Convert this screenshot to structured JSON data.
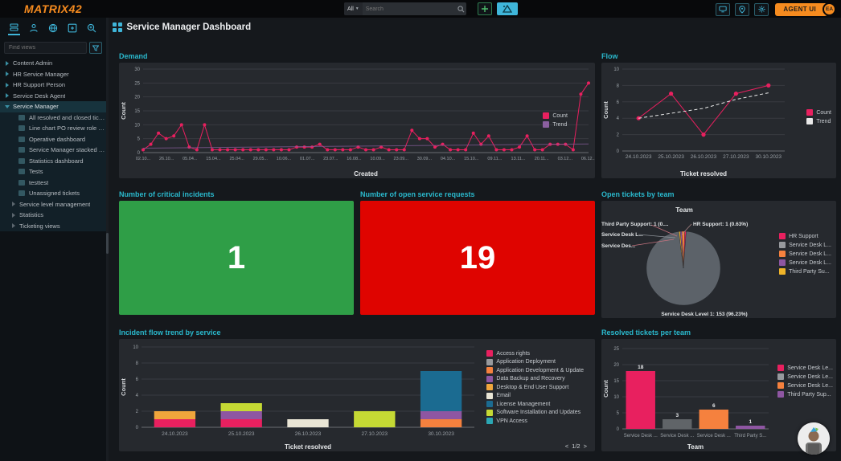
{
  "topbar": {
    "logo": "MATRIX42",
    "search": {
      "scope": "All",
      "placeholder": "Search"
    },
    "add_label": "+",
    "agent_ui_label": "AGENT UI",
    "avatar_initials": "EA"
  },
  "sidebar": {
    "find_views_placeholder": "Find views",
    "tree": [
      {
        "label": "Content Admin",
        "type": "group"
      },
      {
        "label": "HR Service Manager",
        "type": "group"
      },
      {
        "label": "HR Support Person",
        "type": "group"
      },
      {
        "label": "Service Desk Agent",
        "type": "group"
      },
      {
        "label": "Service Manager",
        "type": "group-expanded",
        "children": [
          {
            "label": "All resolved and closed tickets",
            "type": "leaf"
          },
          {
            "label": "Line chart PO review role chart",
            "type": "leaf"
          },
          {
            "label": "Operative dashboard",
            "type": "leaf"
          },
          {
            "label": "Service Manager stacked bar ch...",
            "type": "leaf"
          },
          {
            "label": "Statistics dashboard",
            "type": "leaf"
          },
          {
            "label": "Tests",
            "type": "leaf"
          },
          {
            "label": "testtest",
            "type": "leaf"
          },
          {
            "label": "Unassigned tickets",
            "type": "leaf"
          },
          {
            "label": "Service level management",
            "type": "subgroup"
          },
          {
            "label": "Statistics",
            "type": "subgroup"
          },
          {
            "label": "Ticketing views",
            "type": "subgroup"
          }
        ]
      }
    ]
  },
  "header": {
    "title": "Service Manager Dashboard"
  },
  "cards": {
    "demand_title": "Demand",
    "flow_title": "Flow",
    "critical_title": "Number of critical incidents",
    "critical_value": "1",
    "critical_color": "#2f9e47",
    "requests_title": "Number of open service requests",
    "requests_value": "19",
    "requests_color": "#df0400",
    "pie_title": "Open tickets by team",
    "incident_title": "Incident flow trend by service",
    "resolved_title": "Resolved tickets per team",
    "incident_pagination": {
      "prev": "<",
      "label": "1/2",
      "next": ">"
    }
  },
  "chart_data": [
    {
      "id": "demand",
      "type": "line",
      "title": "Demand",
      "xlabel": "Created",
      "ylabel": "Count",
      "ylim": [
        0,
        30
      ],
      "yticks": [
        0,
        5,
        10,
        15,
        20,
        25,
        30
      ],
      "x_tick_labels": [
        "02.10...",
        "26.10...",
        "05.04...",
        "15.04...",
        "25.04...",
        "29.05...",
        "10.06...",
        "01.07...",
        "23.07...",
        "16.08...",
        "10.09...",
        "23.09...",
        "30.09...",
        "04.10...",
        "15.10...",
        "09.11...",
        "13.11...",
        "20.11...",
        "03.12...",
        "06.12..."
      ],
      "series": [
        {
          "name": "Count",
          "color": "#e8205f",
          "dots": true,
          "values": [
            1,
            3,
            7,
            5,
            6,
            10,
            2,
            1,
            10,
            1,
            1,
            1,
            1,
            1,
            1,
            1,
            1,
            1,
            1,
            1,
            2,
            2,
            2,
            3,
            1,
            1,
            1,
            1,
            2,
            1,
            1,
            2,
            1,
            1,
            1,
            8,
            5,
            5,
            2,
            3,
            1,
            1,
            1,
            7,
            3,
            6,
            1,
            1,
            1,
            2,
            6,
            1,
            1,
            3,
            3,
            3,
            1,
            21,
            25
          ]
        },
        {
          "name": "Trend",
          "color": "#8b5fa0",
          "dots": false,
          "values": [
            1.6,
            3.1
          ]
        }
      ],
      "legend": [
        {
          "label": "Count",
          "color": "#e8205f"
        },
        {
          "label": "Trend",
          "color": "#8b5fa0"
        }
      ]
    },
    {
      "id": "flow",
      "type": "line",
      "title": "Flow",
      "xlabel": "Ticket resolved",
      "ylabel": "Count",
      "ylim": [
        0,
        10
      ],
      "yticks": [
        0,
        2,
        4,
        6,
        8,
        10
      ],
      "categories": [
        "24.10.2023",
        "25.10.2023",
        "26.10.2023",
        "27.10.2023",
        "30.10.2023"
      ],
      "series": [
        {
          "name": "Count",
          "color": "#e8205f",
          "dots": true,
          "values": [
            4,
            7,
            2,
            7,
            8
          ]
        },
        {
          "name": "Trend",
          "color": "#e9e9e9",
          "dots": false,
          "dashed": true,
          "values": [
            4,
            4.6,
            5.2,
            6.3,
            7.1
          ]
        }
      ],
      "legend": [
        {
          "label": "Count",
          "color": "#e8205f"
        },
        {
          "label": "Trend",
          "color": "#e9e9e9"
        }
      ]
    },
    {
      "id": "open-tickets-by-team",
      "type": "pie",
      "title": "Team",
      "slices": [
        {
          "label": "HR Support",
          "value": 1,
          "color": "#e8205f",
          "callout": "HR Support: 1 (0.63%)"
        },
        {
          "label": "Service Desk Level 1",
          "value": 153,
          "color": "#5c6269",
          "callout": "Service Desk Level 1: 153 (96.23%)"
        },
        {
          "label": "Third Party Support",
          "value": 1,
          "color": "#f0b429",
          "callout": "Third Party Support: 1 (0...."
        },
        {
          "label": "Service Desk Level 3",
          "value": 1,
          "color": "#8e56a2",
          "callout": "Service Desk L..."
        },
        {
          "label": "Service Desk Level 2",
          "value": 2,
          "color": "#f5813e",
          "callout": "Service Des..."
        }
      ],
      "legend": [
        {
          "label": "HR Support",
          "color": "#e8205f"
        },
        {
          "label": "Service Desk L...",
          "color": "#97999d"
        },
        {
          "label": "Service Desk L...",
          "color": "#f5813e"
        },
        {
          "label": "Service Desk L...",
          "color": "#8e56a2"
        },
        {
          "label": "Third Party Su...",
          "color": "#f0b429"
        }
      ]
    },
    {
      "id": "incident-flow-trend",
      "type": "stacked-bar",
      "xlabel": "Ticket resolved",
      "ylabel": "Count",
      "ylim": [
        0,
        10
      ],
      "yticks": [
        0,
        2,
        4,
        6,
        8,
        10
      ],
      "categories": [
        "24.10.2023",
        "25.10.2023",
        "26.10.2023",
        "27.10.2023",
        "30.10.2023"
      ],
      "stacks": [
        [
          {
            "service": "Access rights",
            "value": 1
          },
          {
            "service": "Desktop & End User Support",
            "value": 1
          }
        ],
        [
          {
            "service": "Access rights",
            "value": 1
          },
          {
            "service": "Data Backup and Recovery",
            "value": 1
          },
          {
            "service": "Software Installation and Updates",
            "value": 1
          }
        ],
        [
          {
            "service": "Email",
            "value": 1
          }
        ],
        [
          {
            "service": "Software Installation and Updates",
            "value": 2
          }
        ],
        [
          {
            "service": "Application Development & Update",
            "value": 1
          },
          {
            "service": "Data Backup and Recovery",
            "value": 1
          },
          {
            "service": "License Management",
            "value": 5
          }
        ]
      ],
      "legend": [
        {
          "label": "Access rights",
          "color": "#e8205f"
        },
        {
          "label": "Application Deployment",
          "color": "#97999d"
        },
        {
          "label": "Application Development & Update",
          "color": "#f5813e"
        },
        {
          "label": "Data Backup and Recovery",
          "color": "#8e56a2"
        },
        {
          "label": "Desktop & End User Support",
          "color": "#f0a63c"
        },
        {
          "label": "Email",
          "color": "#e9e5d5"
        },
        {
          "label": "License Management",
          "color": "#1b6b91"
        },
        {
          "label": "Software Installation and Updates",
          "color": "#c5d934"
        },
        {
          "label": "VPN Access",
          "color": "#2ba7b4"
        }
      ]
    },
    {
      "id": "resolved-per-team",
      "type": "bar",
      "xlabel": "Team",
      "ylabel": "Count",
      "ylim": [
        0,
        25
      ],
      "yticks": [
        0,
        5,
        10,
        15,
        20,
        25
      ],
      "categories": [
        "Service Desk ...",
        "Service Desk ...",
        "Service Desk ...",
        "Third Party S..."
      ],
      "values": [
        18,
        3,
        6,
        1
      ],
      "bar_colors": [
        "#e8205f",
        "#606468",
        "#f5813e",
        "#8e56a2"
      ],
      "legend": [
        {
          "label": "Service Desk Le...",
          "color": "#e8205f"
        },
        {
          "label": "Service Desk Le...",
          "color": "#97999d"
        },
        {
          "label": "Service Desk Le...",
          "color": "#f5813e"
        },
        {
          "label": "Third Party Sup...",
          "color": "#8e56a2"
        }
      ]
    }
  ]
}
